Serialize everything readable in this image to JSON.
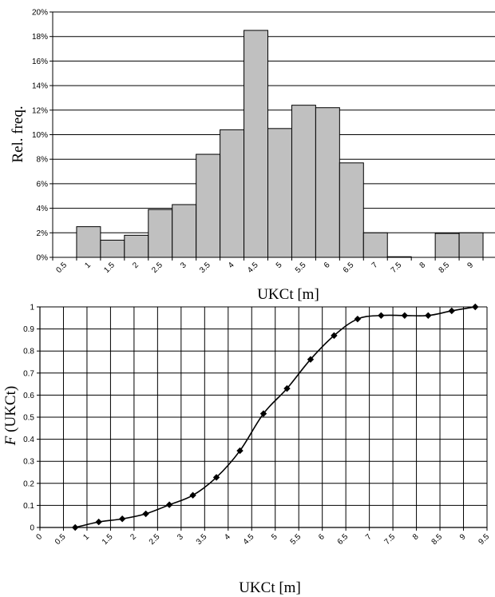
{
  "chart_data": [
    {
      "type": "bar",
      "xlabel": "UKCt [m]",
      "ylabel": "Rel. freq.",
      "ylim": [
        0,
        20
      ],
      "y_unit_suffix": "%",
      "y_ticks": [
        0,
        2,
        4,
        6,
        8,
        10,
        12,
        14,
        16,
        18,
        20
      ],
      "categories": [
        "0.5",
        "1",
        "1.5",
        "2",
        "2.5",
        "3",
        "3.5",
        "4",
        "4.5",
        "5",
        "5.5",
        "6",
        "6.5",
        "7",
        "7.5",
        "8",
        "8.5",
        "9"
      ],
      "values": [
        0,
        2.5,
        1.4,
        1.8,
        3.9,
        4.3,
        8.4,
        10.4,
        18.5,
        10.5,
        12.4,
        12.2,
        7.7,
        2.0,
        0.05,
        0,
        1.95,
        2.0
      ],
      "grid": "horizontal",
      "bar_color": "#c0c0c0"
    },
    {
      "type": "line",
      "xlabel": "UKCt [m]",
      "ylabel_italic": "F",
      "ylabel_rest": " (UKCt)",
      "xlim": [
        0,
        9.5
      ],
      "ylim": [
        0,
        1
      ],
      "x_ticks": [
        "0",
        "0.5",
        "1",
        "1.5",
        "2",
        "2.5",
        "3",
        "3.5",
        "4",
        "4.5",
        "5",
        "5.5",
        "6",
        "6.5",
        "7",
        "7.5",
        "8",
        "8.5",
        "9",
        "9.5"
      ],
      "y_ticks": [
        "0",
        "0.1",
        "0.2",
        "0.3",
        "0.4",
        "0.5",
        "0.6",
        "0.7",
        "0.8",
        "0.9",
        "1"
      ],
      "x": [
        0.75,
        1.25,
        1.75,
        2.25,
        2.75,
        3.25,
        3.75,
        4.25,
        4.75,
        5.25,
        5.75,
        6.25,
        6.75,
        7.25,
        7.75,
        8.25,
        8.75,
        9.25
      ],
      "y": [
        0.0,
        0.025,
        0.039,
        0.062,
        0.103,
        0.146,
        0.227,
        0.348,
        0.516,
        0.63,
        0.762,
        0.87,
        0.945,
        0.961,
        0.961,
        0.961,
        0.982,
        1.0
      ],
      "grid": "both",
      "marker": "diamond"
    }
  ]
}
